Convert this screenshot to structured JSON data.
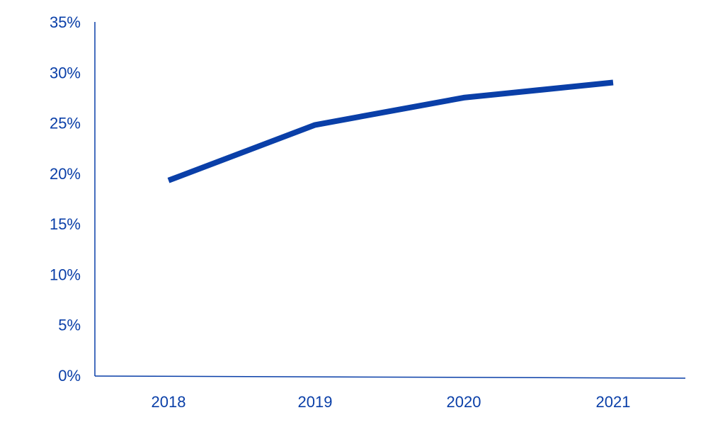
{
  "chart_data": {
    "type": "line",
    "categories": [
      "2018",
      "2019",
      "2020",
      "2021"
    ],
    "series": [
      {
        "values": [
          19.3,
          24.8,
          27.5,
          29.0
        ]
      }
    ],
    "ylim": [
      0,
      35
    ],
    "y_ticks": [
      0,
      5,
      10,
      15,
      20,
      25,
      30,
      35
    ],
    "y_tick_labels": [
      "0%",
      "5%",
      "10%",
      "15%",
      "20%",
      "25%",
      "30%",
      "35%"
    ],
    "grid": false,
    "colors": {
      "line": "#0a3fa8",
      "axis": "#0a3fa8",
      "text": "#0a3fa8"
    }
  }
}
